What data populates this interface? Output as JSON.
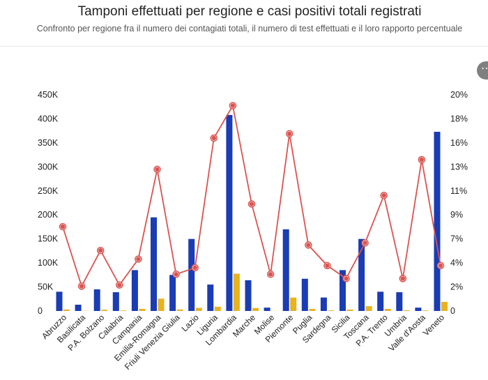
{
  "header": {
    "title": "Tamponi effettuati per regione e casi positivi totali registrati",
    "subtitle": "Confronto per regione fra il numero dei contagiati totali, il numero di test effettuati e il loro rapporto percentuale",
    "more_icon": "more-horizontal-icon"
  },
  "chart_data": {
    "type": "bar",
    "categories": [
      "Abruzzo",
      "Basilicata",
      "P.A. Bolzano",
      "Calabria",
      "Campania",
      "Emilia-Romagna",
      "Friuli Venezia Giulia",
      "Lazio",
      "Liguria",
      "Lombardia",
      "Marche",
      "Molise",
      "Piemonte",
      "Puglia",
      "Sardegna",
      "Sicilia",
      "Toscana",
      "P.A. Trento",
      "Umbria",
      "Valle d'Aosta",
      "Veneto"
    ],
    "series": [
      {
        "kind": "bar",
        "axis": "left",
        "color": "#1a3cb4",
        "values": [
          40000,
          13000,
          45000,
          39000,
          85000,
          195000,
          75000,
          150000,
          55000,
          408000,
          64000,
          7000,
          170000,
          67000,
          28000,
          85000,
          150000,
          40000,
          39000,
          7000,
          373000
        ]
      },
      {
        "kind": "bar",
        "axis": "left",
        "color": "#e8b320",
        "values": [
          3000,
          400,
          2600,
          1100,
          4300,
          25700,
          3200,
          6500,
          8800,
          77600,
          6300,
          300,
          27900,
          4300,
          1300,
          3000,
          10000,
          4300,
          1400,
          1100,
          19000
        ]
      },
      {
        "kind": "line",
        "axis": "right",
        "color": "#d9534f",
        "values": [
          7.8,
          2.3,
          5.6,
          2.4,
          4.8,
          13.1,
          3.4,
          4.0,
          16.0,
          19.0,
          9.9,
          3.4,
          16.4,
          6.1,
          4.2,
          3.0,
          6.3,
          10.7,
          3.0,
          14.0,
          4.2
        ]
      }
    ],
    "y_ticks": [
      "450K",
      "400K",
      "350K",
      "300K",
      "250K",
      "200K",
      "150K",
      "100K",
      "50K",
      "0"
    ],
    "y2_ticks": [
      "20%",
      "18%",
      "16%",
      "13%",
      "11%",
      "9%",
      "7%",
      "4%",
      "2%",
      "0"
    ],
    "ylim": [
      0,
      450000
    ],
    "y2lim": [
      0,
      20
    ],
    "grid": false,
    "legend": "none"
  }
}
